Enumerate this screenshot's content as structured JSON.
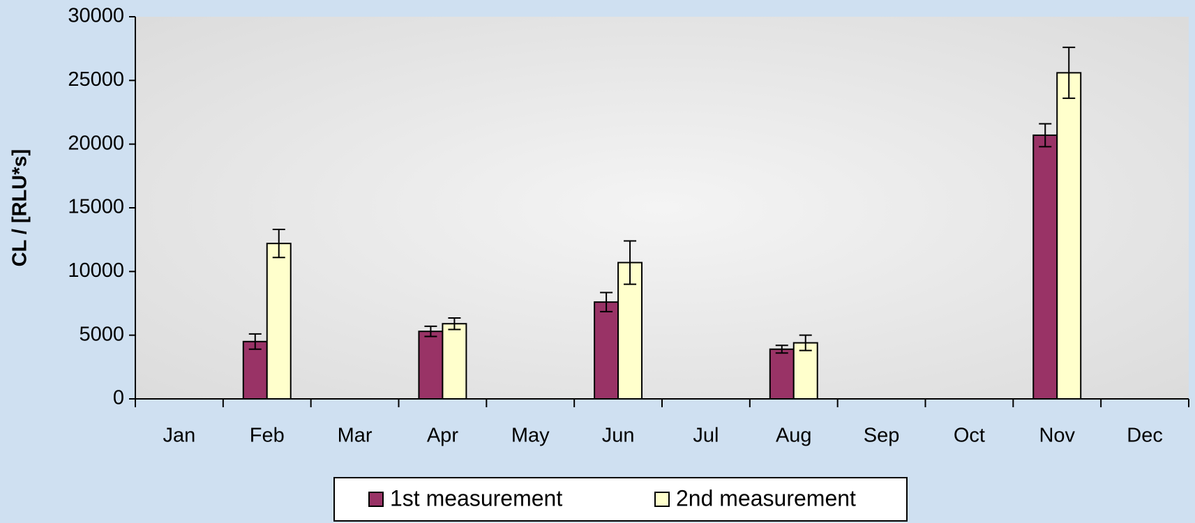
{
  "chart_data": {
    "type": "bar",
    "y_label": "CL / [RLU*s]",
    "categories": [
      "Jan",
      "Feb",
      "Mar",
      "Apr",
      "May",
      "Jun",
      "Jul",
      "Aug",
      "Sep",
      "Oct",
      "Nov",
      "Dec"
    ],
    "series": [
      {
        "name": "1st measurement",
        "color": "#993366",
        "values": [
          null,
          4500,
          null,
          5300,
          null,
          7600,
          null,
          3900,
          null,
          null,
          20700,
          null
        ],
        "errors": [
          null,
          600,
          null,
          400,
          null,
          750,
          null,
          300,
          null,
          null,
          900,
          null
        ]
      },
      {
        "name": "2nd measurement",
        "color": "#ffffcc",
        "values": [
          null,
          12200,
          null,
          5900,
          null,
          10700,
          null,
          4400,
          null,
          null,
          25600,
          null
        ],
        "errors": [
          null,
          1100,
          null,
          450,
          null,
          1700,
          null,
          600,
          null,
          null,
          2000,
          null
        ]
      }
    ],
    "ylim": [
      0,
      30000
    ],
    "yticks": [
      0,
      5000,
      10000,
      15000,
      20000,
      25000,
      30000
    ],
    "legend": "bottom"
  }
}
